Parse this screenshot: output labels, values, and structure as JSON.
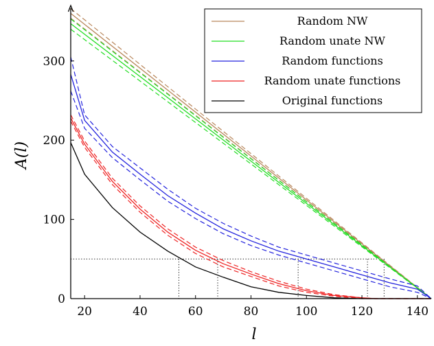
{
  "chart_data": {
    "type": "line",
    "xlabel": "l",
    "ylabel": "A(l)",
    "xlim": [
      15,
      145
    ],
    "ylim": [
      0,
      370
    ],
    "xticks": [
      20,
      40,
      60,
      80,
      100,
      120,
      140
    ],
    "yticks": [
      0,
      100,
      200,
      300
    ],
    "legend_position": "top-right",
    "grid": false,
    "reference_lines": {
      "horizontal_y": 50,
      "vertical_x": [
        54,
        68,
        97,
        122,
        128
      ]
    },
    "series": [
      {
        "name": "Random NW",
        "color": "#b8865b",
        "x": [
          15,
          145
        ],
        "mean": [
          360,
          0
        ],
        "upper": [
          366,
          0
        ],
        "lower": [
          354,
          0
        ]
      },
      {
        "name": "Random unate NW",
        "color": "#22dd22",
        "x": [
          15,
          145
        ],
        "mean": [
          347,
          0
        ],
        "upper": [
          353,
          0
        ],
        "lower": [
          340,
          0
        ]
      },
      {
        "name": "Random functions",
        "color": "#2222dd",
        "x": [
          15,
          20,
          30,
          40,
          50,
          60,
          70,
          80,
          90,
          100,
          110,
          120,
          130,
          140,
          145
        ],
        "mean": [
          283,
          225,
          185,
          157,
          130,
          108,
          88,
          73,
          60,
          50,
          40,
          30,
          20,
          12,
          0
        ],
        "upper": [
          305,
          232,
          192,
          165,
          138,
          114,
          95,
          79,
          65,
          55,
          45,
          35,
          25,
          16,
          0
        ],
        "lower": [
          262,
          215,
          178,
          150,
          123,
          101,
          82,
          67,
          55,
          45,
          35,
          25,
          15,
          8,
          0
        ]
      },
      {
        "name": "Random unate functions",
        "color": "#ee2222",
        "x": [
          15,
          20,
          30,
          40,
          50,
          60,
          70,
          80,
          90,
          100,
          110,
          120,
          125,
          130,
          140,
          145
        ],
        "mean": [
          228,
          195,
          148,
          113,
          84,
          61,
          44,
          31,
          19,
          10,
          4,
          1,
          0,
          0,
          0,
          0
        ],
        "upper": [
          232,
          199,
          152,
          117,
          88,
          65,
          48,
          34,
          22,
          12,
          5,
          1,
          0,
          0,
          0,
          0
        ],
        "lower": [
          224,
          191,
          144,
          109,
          80,
          57,
          40,
          28,
          16,
          8,
          3,
          0,
          0,
          0,
          0,
          0
        ]
      },
      {
        "name": "Original functions",
        "color": "#000000",
        "x": [
          15,
          20,
          30,
          40,
          50,
          60,
          70,
          80,
          90,
          100,
          110,
          120,
          130,
          145
        ],
        "mean": [
          197,
          157,
          115,
          84,
          60,
          40,
          27,
          15,
          8,
          4,
          1,
          0,
          0,
          0
        ]
      }
    ]
  }
}
